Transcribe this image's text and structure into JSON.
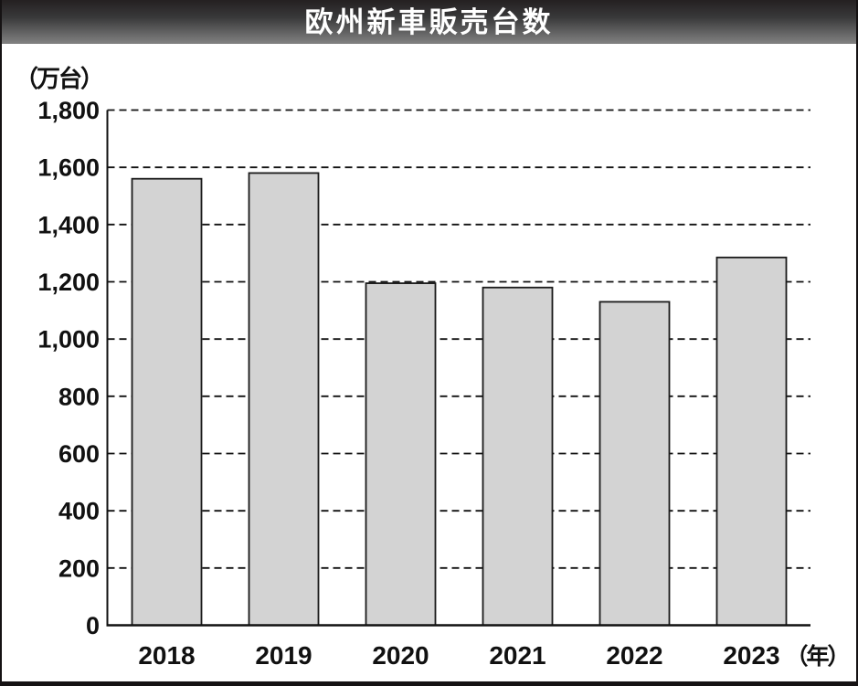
{
  "header": {
    "title": "欧州新車販売台数"
  },
  "chart_data": {
    "type": "bar",
    "title": "欧州新車販売台数",
    "ylabel_unit": "（万台）",
    "x_unit_suffix": "（年）",
    "categories": [
      "2018",
      "2019",
      "2020",
      "2021",
      "2022",
      "2023"
    ],
    "values": [
      1560,
      1580,
      1195,
      1180,
      1130,
      1285
    ],
    "ylim": [
      0,
      1800
    ],
    "y_tick_step": 200,
    "y_tick_labels": [
      "0",
      "200",
      "400",
      "600",
      "800",
      "1,000",
      "1,200",
      "1,400",
      "1,600",
      "1,800"
    ],
    "grid": "horizontal-dashed",
    "legend": "none",
    "bar_fill": "#d3d3d3",
    "bar_stroke": "#1a1a1a"
  },
  "colors": {
    "background": "#ffffff",
    "frame": "#151213",
    "header_gradient_top": "#242021",
    "header_gradient_bottom": "#828282",
    "title_text": "#ffffff",
    "axis": "#111111",
    "gridline": "#111111"
  }
}
